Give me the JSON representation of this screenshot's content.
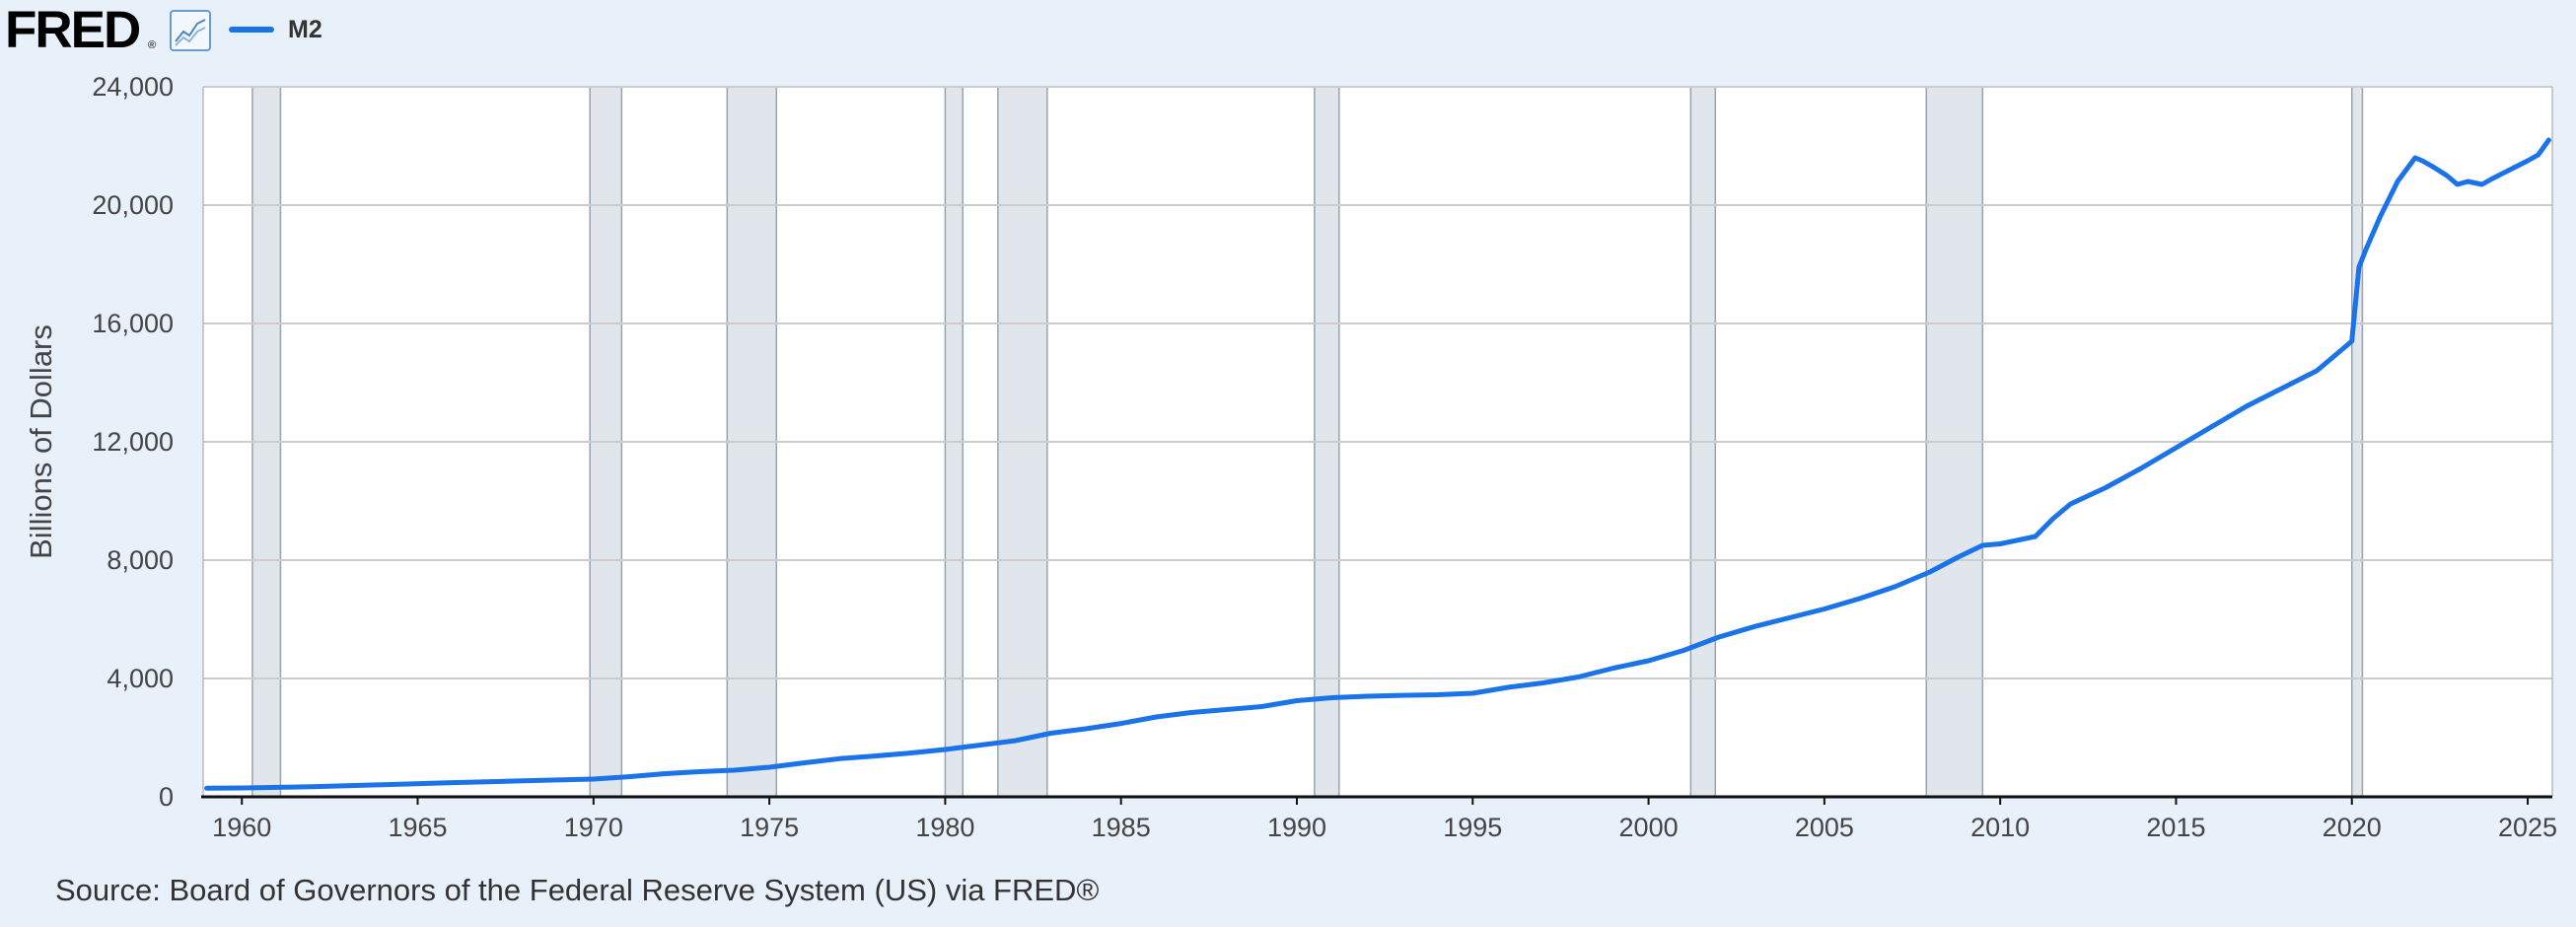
{
  "header": {
    "logo_text": "FRED",
    "logo_mark": "®",
    "graph_icon": "line-graph-icon"
  },
  "legend": {
    "label": "M2",
    "color": "#1a73e8"
  },
  "source_text": "Source: Board of Governors of the Federal Reserve System (US) via FRED®",
  "colors": {
    "background": "#e8f0f9",
    "plot_background": "#ffffff",
    "line": "#1a73e8",
    "recession": "#e1e6ec",
    "grid": "#cccccc"
  },
  "chart_data": {
    "type": "line",
    "title": "",
    "xlabel": "",
    "ylabel": "Billions of Dollars",
    "xlim": [
      1958.9,
      2025.7
    ],
    "ylim": [
      0,
      24000
    ],
    "grid": true,
    "legend_position": "top-left",
    "x_ticks": [
      1960,
      1965,
      1970,
      1975,
      1980,
      1985,
      1990,
      1995,
      2000,
      2005,
      2010,
      2015,
      2020,
      2025
    ],
    "y_ticks": [
      0,
      4000,
      8000,
      12000,
      16000,
      20000,
      24000
    ],
    "y_tick_labels": [
      "0",
      "4,000",
      "8,000",
      "12,000",
      "16,000",
      "20,000",
      "24,000"
    ],
    "recessions": [
      [
        1960.3,
        1961.1
      ],
      [
        1969.9,
        1970.8
      ],
      [
        1973.8,
        1975.2
      ],
      [
        1980.0,
        1980.5
      ],
      [
        1981.5,
        1982.9
      ],
      [
        1990.5,
        1991.2
      ],
      [
        2001.2,
        2001.9
      ],
      [
        2007.9,
        2009.5
      ],
      [
        2020.0,
        2020.3
      ]
    ],
    "series": [
      {
        "name": "M2",
        "x": [
          1959.0,
          1960,
          1962,
          1964,
          1966,
          1968,
          1970,
          1971,
          1972,
          1973,
          1974,
          1975,
          1976,
          1977,
          1978,
          1979,
          1980,
          1981,
          1982,
          1983,
          1984,
          1985,
          1986,
          1987,
          1988,
          1989,
          1990,
          1991,
          1992,
          1993,
          1994,
          1995,
          1996,
          1997,
          1998,
          1999,
          2000,
          2001,
          2002,
          2003,
          2004,
          2005,
          2006,
          2007,
          2008,
          2008.8,
          2009.5,
          2010,
          2011,
          2011.5,
          2012,
          2013,
          2014,
          2015,
          2016,
          2017,
          2018,
          2019,
          2019.6,
          2020.0,
          2020.2,
          2020.4,
          2020.8,
          2021.3,
          2021.8,
          2022.0,
          2022.3,
          2022.7,
          2023.0,
          2023.3,
          2023.7,
          2024.0,
          2024.5,
          2025.0,
          2025.3,
          2025.6
        ],
        "y": [
          290,
          300,
          340,
          410,
          480,
          540,
          600,
          680,
          780,
          850,
          900,
          1000,
          1150,
          1290,
          1380,
          1480,
          1600,
          1750,
          1900,
          2150,
          2300,
          2480,
          2700,
          2850,
          2950,
          3050,
          3250,
          3350,
          3400,
          3430,
          3450,
          3500,
          3700,
          3850,
          4050,
          4350,
          4600,
          4950,
          5400,
          5750,
          6050,
          6350,
          6700,
          7100,
          7600,
          8100,
          8500,
          8550,
          8800,
          9400,
          9900,
          10450,
          11100,
          11800,
          12500,
          13200,
          13800,
          14400,
          15000,
          15400,
          17900,
          18500,
          19600,
          20800,
          21600,
          21500,
          21300,
          21000,
          20700,
          20800,
          20700,
          20900,
          21200,
          21500,
          21700,
          22200
        ]
      }
    ]
  }
}
